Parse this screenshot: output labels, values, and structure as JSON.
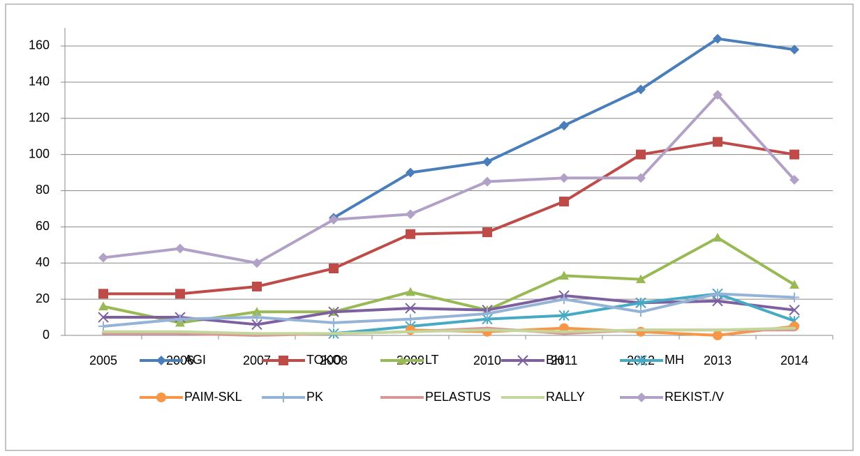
{
  "chart_data": {
    "type": "line",
    "categories": [
      "2005",
      "2006",
      "2007",
      "2008",
      "2009",
      "2010",
      "2011",
      "2012",
      "2013",
      "2014"
    ],
    "series": [
      {
        "name": "AGI",
        "color": "#4a7ebb",
        "marker": "diamond",
        "values": [
          null,
          null,
          null,
          65,
          90,
          96,
          116,
          136,
          164,
          158
        ]
      },
      {
        "name": "TOKO",
        "color": "#be4b48",
        "marker": "square",
        "values": [
          23,
          23,
          27,
          37,
          56,
          57,
          74,
          100,
          107,
          100
        ]
      },
      {
        "name": "LT",
        "color": "#98b954",
        "marker": "triangle",
        "values": [
          16,
          7,
          13,
          13,
          24,
          14,
          33,
          31,
          54,
          28
        ]
      },
      {
        "name": "BH",
        "color": "#7d60a0",
        "marker": "x",
        "values": [
          10,
          10,
          6,
          13,
          15,
          14,
          22,
          18,
          19,
          14
        ]
      },
      {
        "name": "MH",
        "color": "#46aac5",
        "marker": "asterisk",
        "values": [
          null,
          null,
          null,
          1,
          5,
          9,
          11,
          18,
          23,
          8
        ]
      },
      {
        "name": "PAIM-SKL",
        "color": "#f79646",
        "marker": "circle",
        "values": [
          null,
          null,
          null,
          null,
          3,
          2,
          4,
          2,
          0,
          5
        ]
      },
      {
        "name": "PK",
        "color": "#95b3d7",
        "marker": "plus",
        "values": [
          5,
          9,
          10,
          7,
          9,
          12,
          20,
          13,
          23,
          21
        ]
      },
      {
        "name": "PELASTUS",
        "color": "#d99795",
        "marker": "none",
        "values": [
          1,
          1,
          0,
          1,
          2,
          4,
          1,
          3,
          3,
          3
        ]
      },
      {
        "name": "RALLY",
        "color": "#c3d69b",
        "marker": "none",
        "values": [
          2,
          2,
          1,
          1,
          2,
          3,
          2,
          3,
          3,
          4
        ]
      },
      {
        "name": "REKIST./V",
        "color": "#b2a1c7",
        "marker": "diamond",
        "values": [
          43,
          48,
          40,
          64,
          67,
          85,
          87,
          87,
          133,
          86
        ]
      }
    ],
    "ylim": [
      0,
      170
    ],
    "yticks": [
      0,
      20,
      40,
      60,
      80,
      100,
      120,
      140,
      160
    ],
    "grid": true
  }
}
